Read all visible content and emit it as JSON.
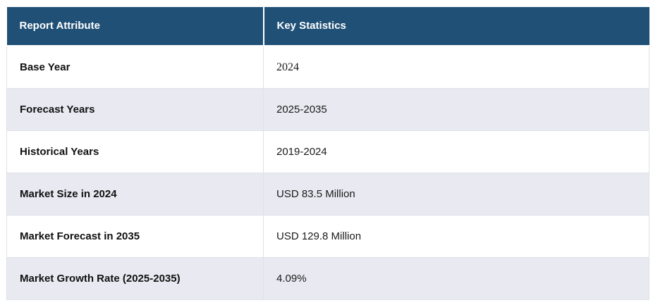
{
  "page": {
    "background": "#FFFFFF"
  },
  "table": {
    "columns": [
      {
        "label": "Report Attribute"
      },
      {
        "label": "Key Statistics"
      }
    ],
    "rows": [
      {
        "attribute": "Base Year",
        "value": "2024"
      },
      {
        "attribute": "Forecast Years",
        "value": "2025-2035"
      },
      {
        "attribute": "Historical Years",
        "value": "2019-2024"
      },
      {
        "attribute": "Market Size in 2024",
        "value": "USD 83.5 Million"
      },
      {
        "attribute": "Market Forecast in 2035",
        "value": "USD 129.8 Million"
      },
      {
        "attribute": "Market Growth Rate (2025-2035)",
        "value": "4.09%"
      }
    ],
    "colors": {
      "header_bg": "#205076",
      "header_text": "#FFFFFF",
      "stripe_bg": "#E9E9F2",
      "row_bg": "#FFFFFF",
      "border": "#DEE2E6",
      "attribute_text": "#111111",
      "value_text": "#1A1A1A"
    }
  }
}
